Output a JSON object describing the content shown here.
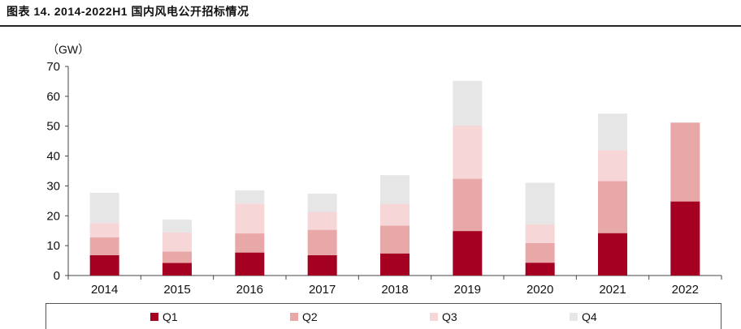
{
  "title": "图表 14. 2014-2022H1 国内风电公开招标情况",
  "chart_data": {
    "type": "bar",
    "stacked": true,
    "unit_label": "（GW）",
    "categories": [
      "2014",
      "2015",
      "2016",
      "2017",
      "2018",
      "2019",
      "2020",
      "2021",
      "2022"
    ],
    "ylim": [
      0,
      70
    ],
    "yticks": [
      0,
      10,
      20,
      30,
      40,
      50,
      60,
      70
    ],
    "grid": false,
    "legend_position": "bottom",
    "series": [
      {
        "name": "Q1",
        "color": "#A50021",
        "values": [
          6.8,
          4.2,
          7.7,
          6.8,
          7.4,
          14.9,
          4.3,
          14.2,
          24.8
        ]
      },
      {
        "name": "Q2",
        "color": "#E9A8A8",
        "values": [
          6.0,
          3.8,
          6.4,
          8.5,
          9.3,
          17.5,
          6.6,
          17.4,
          26.4
        ]
      },
      {
        "name": "Q3",
        "color": "#F7D6D8",
        "values": [
          4.8,
          6.4,
          10.0,
          6.0,
          7.3,
          17.8,
          6.2,
          10.4,
          0
        ]
      },
      {
        "name": "Q4",
        "color": "#E6E6E6",
        "values": [
          10.1,
          4.3,
          4.4,
          6.1,
          9.6,
          15.0,
          14.0,
          12.2,
          0
        ]
      }
    ]
  }
}
